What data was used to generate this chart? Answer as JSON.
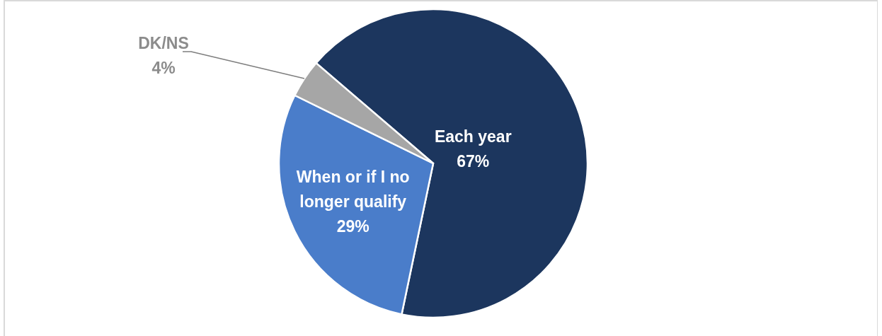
{
  "chart_data": {
    "type": "pie",
    "categories": [
      "Each year",
      "When or if I no longer qualify",
      "DK/NS"
    ],
    "values": [
      67,
      29,
      4
    ],
    "colors": [
      "#1c365e",
      "#4a7dca",
      "#a6a6a6"
    ],
    "value_labels": [
      "67%",
      "29%",
      "4%"
    ]
  }
}
